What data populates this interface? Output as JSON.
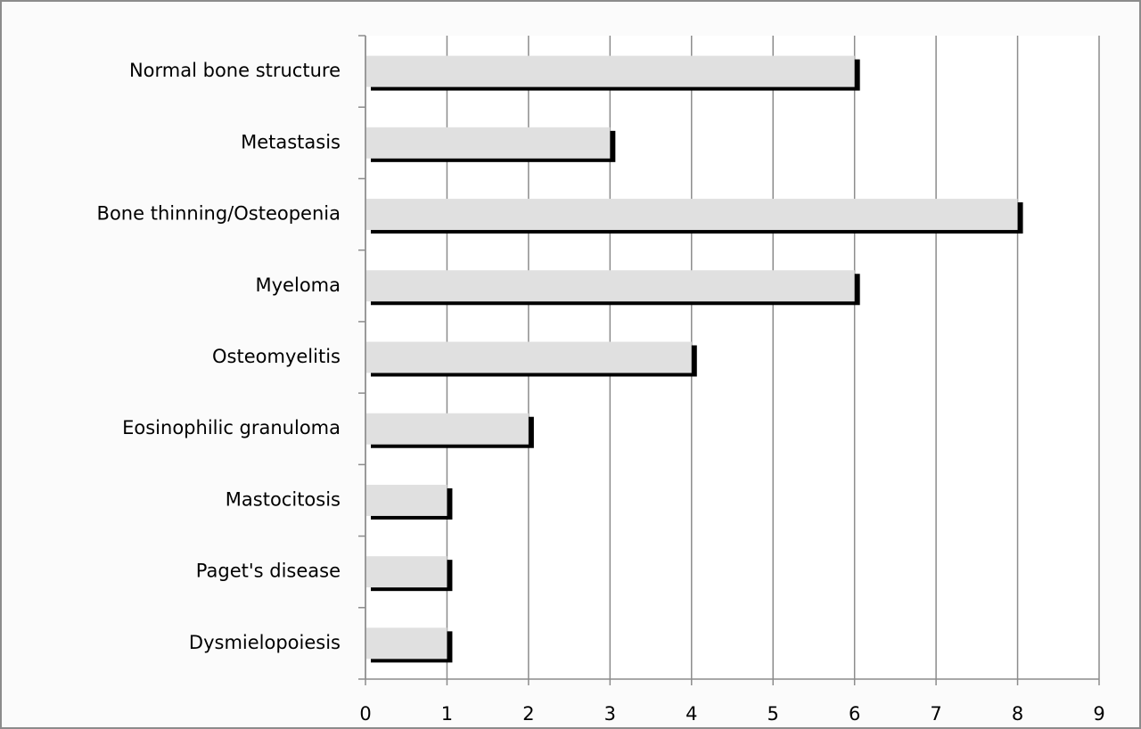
{
  "chart_data": {
    "type": "hbar",
    "categories": [
      "Normal bone structure",
      "Metastasis",
      "Bone thinning/Osteopenia",
      "Myeloma",
      "Osteomyelitis",
      "Eosinophilic granuloma",
      "Mastocitosis",
      "Paget's disease",
      "Dysmielopoiesis"
    ],
    "values": [
      6,
      3,
      8,
      6,
      4,
      2,
      1,
      1,
      1
    ],
    "color": "#e0e0e0",
    "xlim": [
      0,
      9
    ],
    "xticks": [
      0,
      1,
      2,
      3,
      4,
      5,
      6,
      7,
      8,
      9
    ],
    "grid": true
  }
}
